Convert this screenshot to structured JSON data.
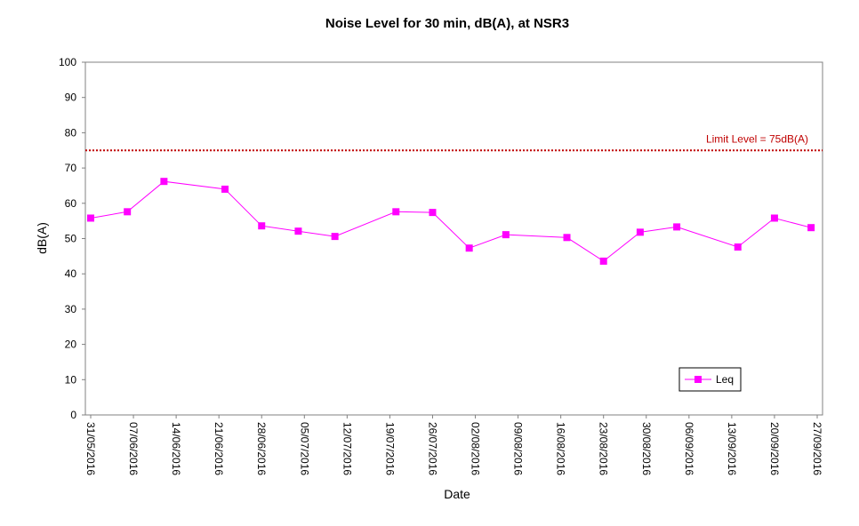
{
  "chart_data": {
    "type": "line",
    "title": "Noise Level for 30 min, dB(A), at NSR3",
    "xlabel": "Date",
    "ylabel": "dB(A)",
    "ylim": [
      0,
      100
    ],
    "yticks": [
      0,
      10,
      20,
      30,
      40,
      50,
      60,
      70,
      80,
      90,
      100
    ],
    "xlim": [
      "31/05/2016",
      "27/09/2016"
    ],
    "x_tick_labels": [
      "31/05/2016",
      "07/06/2016",
      "14/06/2016",
      "21/06/2016",
      "28/06/2016",
      "05/07/2016",
      "12/07/2016",
      "19/07/2016",
      "26/07/2016",
      "02/08/2016",
      "09/08/2016",
      "16/08/2016",
      "23/08/2016",
      "30/08/2016",
      "06/09/2016",
      "13/09/2016",
      "20/09/2016",
      "27/09/2016"
    ],
    "grid": false,
    "legend_position": "bottom-right",
    "series": [
      {
        "name": "Leq",
        "color": "#ff00ff",
        "marker": "square",
        "x": [
          "31/05/2016",
          "06/06/2016",
          "12/06/2016",
          "22/06/2016",
          "28/06/2016",
          "04/07/2016",
          "10/07/2016",
          "20/07/2016",
          "26/07/2016",
          "01/08/2016",
          "07/08/2016",
          "17/08/2016",
          "23/08/2016",
          "29/08/2016",
          "04/09/2016",
          "14/09/2016",
          "20/09/2016",
          "26/09/2016"
        ],
        "y": [
          55.8,
          57.6,
          66.2,
          64.0,
          53.6,
          52.1,
          50.6,
          57.6,
          57.4,
          47.3,
          51.1,
          50.3,
          43.6,
          51.8,
          53.3,
          47.6,
          55.8,
          53.1
        ]
      }
    ],
    "reference_lines": [
      {
        "label": "Limit Level  = 75dB(A)",
        "y": 75,
        "color": "#c00000",
        "style": "dotted"
      }
    ]
  }
}
